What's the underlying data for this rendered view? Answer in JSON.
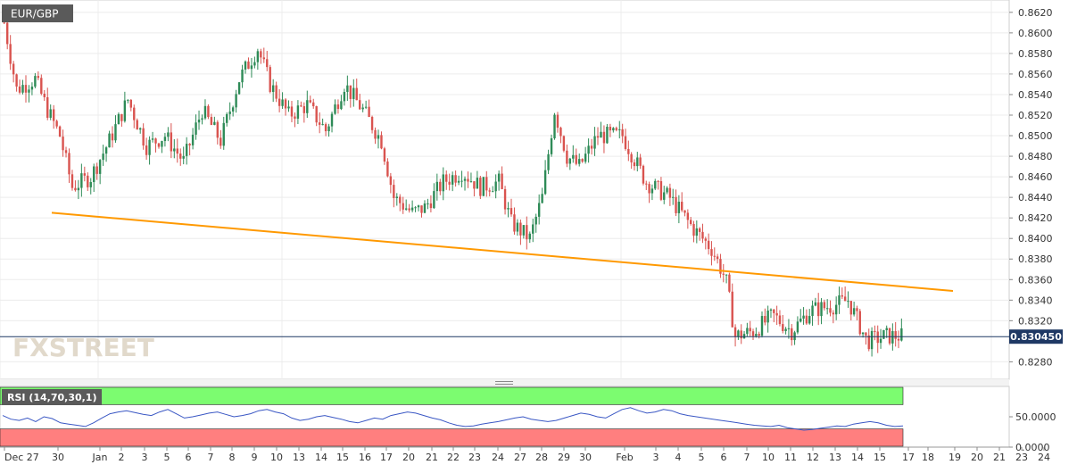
{
  "symbol": "EUR/GBP",
  "brand": "FXSTREET",
  "rsi_label": "RSI (14,70,30,1)",
  "chart_data": [
    {
      "type": "candlestick",
      "title": "EUR/GBP",
      "ylim": [
        0.8263,
        0.8632
      ],
      "y_ticks": [
        "0.8620",
        "0.8600",
        "0.8580",
        "0.8560",
        "0.8540",
        "0.8520",
        "0.8500",
        "0.8480",
        "0.8460",
        "0.8440",
        "0.8420",
        "0.8400",
        "0.8380",
        "0.8360",
        "0.8340",
        "0.8320",
        "0.8280"
      ],
      "x_ticks": [
        "Dec 27",
        "30",
        "Jan",
        "2",
        "3",
        "5",
        "6",
        "7",
        "8",
        "9",
        "10",
        "13",
        "14",
        "15",
        "16",
        "17",
        "20",
        "21",
        "22",
        "23",
        "24",
        "27",
        "28",
        "29",
        "30",
        "Feb",
        "3",
        "4",
        "5",
        "6",
        "7",
        "10",
        "11",
        "12",
        "13",
        "14",
        "15",
        "17",
        "18",
        "19",
        "20",
        "21",
        "23",
        "24"
      ],
      "current_price": "0.830450",
      "current_value": 0.83045,
      "trendline": [
        [
          0.0,
          0.8425
        ],
        [
          1.0,
          0.8349
        ]
      ],
      "colors": {
        "up": "#2e8b57",
        "down": "#d9534f",
        "trendline": "#ff9900",
        "price_line": "#1f3864"
      },
      "anchors": [
        [
          0.0,
          0.861
        ],
        [
          0.02,
          0.8545
        ],
        [
          0.05,
          0.8555
        ],
        [
          0.07,
          0.8525
        ],
        [
          0.09,
          0.85
        ],
        [
          0.11,
          0.845
        ],
        [
          0.14,
          0.846
        ],
        [
          0.17,
          0.8495
        ],
        [
          0.2,
          0.8535
        ],
        [
          0.23,
          0.849
        ],
        [
          0.26,
          0.85
        ],
        [
          0.29,
          0.8475
        ],
        [
          0.32,
          0.8525
        ],
        [
          0.35,
          0.8495
        ],
        [
          0.38,
          0.8555
        ],
        [
          0.41,
          0.8585
        ],
        [
          0.43,
          0.855
        ],
        [
          0.46,
          0.852
        ],
        [
          0.49,
          0.853
        ],
        [
          0.52,
          0.8505
        ],
        [
          0.55,
          0.855
        ],
        [
          0.58,
          0.8525
        ],
        [
          0.61,
          0.8495
        ],
        [
          0.63,
          0.844
        ],
        [
          0.66,
          0.8425
        ],
        [
          0.68,
          0.843
        ],
        [
          0.71,
          0.8455
        ],
        [
          0.74,
          0.8465
        ],
        [
          0.77,
          0.845
        ],
        [
          0.8,
          0.8455
        ],
        [
          0.82,
          0.8415
        ],
        [
          0.85,
          0.84
        ],
        [
          0.87,
          0.844
        ],
        [
          0.89,
          0.8525
        ],
        [
          0.91,
          0.848
        ],
        [
          0.93,
          0.847
        ],
        [
          0.96,
          0.85
        ],
        [
          0.98,
          0.85
        ]
      ],
      "anchors_feb": [
        [
          0.0,
          0.85
        ],
        [
          0.05,
          0.8455
        ],
        [
          0.1,
          0.844
        ],
        [
          0.15,
          0.841
        ],
        [
          0.19,
          0.839
        ],
        [
          0.22,
          0.836
        ],
        [
          0.24,
          0.8305
        ],
        [
          0.28,
          0.831
        ],
        [
          0.32,
          0.8325
        ],
        [
          0.36,
          0.831
        ],
        [
          0.4,
          0.833
        ],
        [
          0.45,
          0.8335
        ],
        [
          0.48,
          0.834
        ],
        [
          0.52,
          0.83
        ],
        [
          0.56,
          0.8305
        ],
        [
          0.6,
          0.8305
        ]
      ]
    },
    {
      "type": "line",
      "title": "RSI (14,70,30,1)",
      "ylim": [
        0,
        100
      ],
      "y_ticks": [
        "50.0000",
        "0.0000"
      ],
      "bands": {
        "overbought": 70,
        "oversold": 30
      },
      "colors": {
        "line": "#3a57c4",
        "overbought_band": "#7cfc70",
        "oversold_band": "#ff7f7f"
      },
      "values": [
        52,
        46,
        44,
        48,
        42,
        50,
        47,
        40,
        38,
        36,
        34,
        40,
        48,
        55,
        58,
        60,
        57,
        54,
        52,
        58,
        62,
        55,
        48,
        50,
        53,
        56,
        58,
        54,
        50,
        52,
        55,
        60,
        62,
        58,
        55,
        48,
        44,
        46,
        50,
        52,
        49,
        46,
        42,
        40,
        44,
        48,
        46,
        52,
        55,
        58,
        56,
        52,
        48,
        45,
        40,
        36,
        34,
        35,
        38,
        40,
        42,
        45,
        48,
        50,
        46,
        44,
        42,
        44,
        48,
        52,
        56,
        54,
        50,
        48,
        55,
        62,
        65,
        60,
        56,
        58,
        62,
        60,
        55,
        52,
        50,
        48,
        46,
        44,
        42,
        40,
        38,
        36,
        35,
        34,
        36,
        32,
        30,
        28,
        29,
        31,
        33,
        35,
        34,
        38,
        40,
        42,
        40,
        36,
        34,
        35
      ]
    }
  ]
}
